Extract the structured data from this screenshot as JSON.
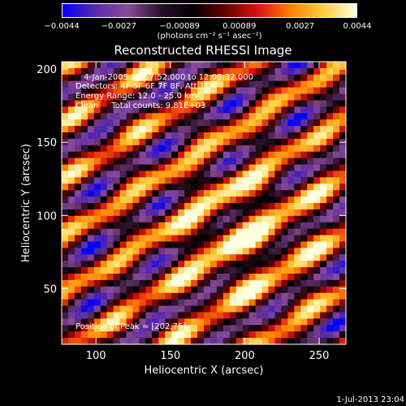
{
  "colorbar": {
    "tick_labels": [
      "−0.0044",
      "−0.0027",
      "−0.00089",
      "0.00089",
      "0.0027",
      "0.0044"
    ],
    "tick_values": [
      -0.0044,
      -0.0027,
      -0.00089,
      0.00089,
      0.0027,
      0.0044
    ],
    "range": [
      -0.0044,
      0.0044
    ],
    "unit_label": "(photons cm⁻² s⁻¹ asec⁻²)",
    "colors": [
      "#0000ff",
      "#5a2aa8",
      "#8a4a9a",
      "#2a1028",
      "#000000",
      "#6a0000",
      "#d81414",
      "#ff8000",
      "#ffd040",
      "#ffffe0"
    ]
  },
  "annotations": {
    "time_range": "4-Jan-2005 11:57:52.000 to 12:05:32.000",
    "detectors": "Detectors: 4F 5F 6F 7F 8F, Att 1",
    "energy_range": "Energy Range: 12.0 - 25.0 keV",
    "algorithm": "Clean     Total counts: 9.81E+03",
    "peak": "Position of Peak = [202,75]"
  },
  "footer": {
    "date": "1-Jul-2013 23:04"
  },
  "chart_data": {
    "type": "heatmap",
    "title": "Reconstructed RHESSI Image",
    "xlabel": "Heliocentric X (arcsec)",
    "ylabel": "Heliocentric Y (arcsec)",
    "xlim": [
      77,
      268
    ],
    "ylim": [
      12,
      205
    ],
    "xticks": [
      100,
      150,
      200,
      250
    ],
    "yticks": [
      50,
      100,
      150,
      200
    ],
    "peak": [
      202,
      75
    ]
  }
}
